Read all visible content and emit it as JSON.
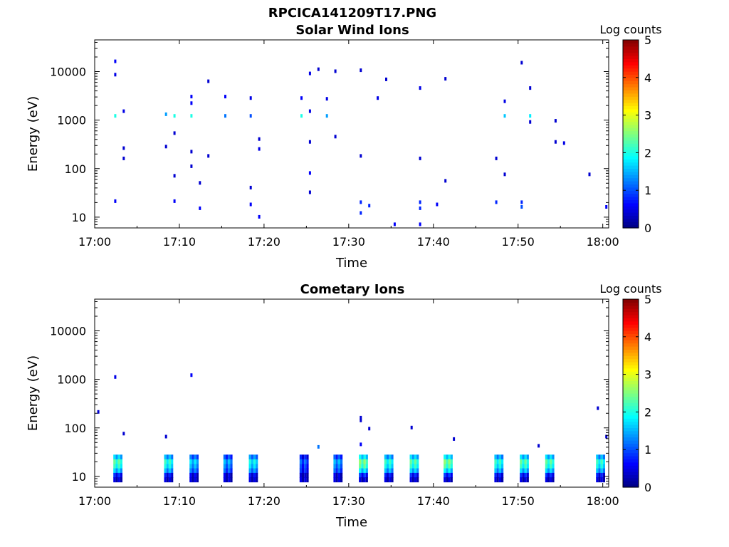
{
  "figure_title": "RPCICA141209T17.PNG",
  "chart_data": [
    {
      "type": "heatmap",
      "title": "Solar Wind Ions",
      "xlabel": "Time",
      "ylabel": "Energy (eV)",
      "y_scale": "log",
      "xlim": [
        "17:00",
        "18:00"
      ],
      "ylim": [
        6,
        45000
      ],
      "x_ticks": [
        "17:00",
        "17:10",
        "17:20",
        "17:30",
        "17:40",
        "17:50",
        "18:00"
      ],
      "y_ticks": [
        "10",
        "100",
        "1000",
        "10000"
      ],
      "colorbar": {
        "label": "Log counts",
        "range": [
          0,
          5
        ],
        "ticks": [
          "0",
          "1",
          "2",
          "3",
          "4",
          "5"
        ]
      },
      "cells": [
        {
          "t": "17:02",
          "e": 1200,
          "v": 2.0
        },
        {
          "t": "17:02",
          "e": 16000,
          "v": 0.6
        },
        {
          "t": "17:02",
          "e": 8500,
          "v": 0.5
        },
        {
          "t": "17:02",
          "e": 21,
          "v": 0.6
        },
        {
          "t": "17:03",
          "e": 1500,
          "v": 0.5
        },
        {
          "t": "17:03",
          "e": 160,
          "v": 0.4
        },
        {
          "t": "17:03",
          "e": 260,
          "v": 0.4
        },
        {
          "t": "17:08",
          "e": 1300,
          "v": 1.4
        },
        {
          "t": "17:09",
          "e": 1200,
          "v": 2.0
        },
        {
          "t": "17:09",
          "e": 530,
          "v": 0.4
        },
        {
          "t": "17:08",
          "e": 280,
          "v": 0.4
        },
        {
          "t": "17:09",
          "e": 70,
          "v": 0.4
        },
        {
          "t": "17:09",
          "e": 21,
          "v": 0.6
        },
        {
          "t": "17:11",
          "e": 1200,
          "v": 2.0
        },
        {
          "t": "17:11",
          "e": 3000,
          "v": 0.6
        },
        {
          "t": "17:11",
          "e": 2200,
          "v": 0.6
        },
        {
          "t": "17:11",
          "e": 220,
          "v": 0.4
        },
        {
          "t": "17:11",
          "e": 110,
          "v": 0.4
        },
        {
          "t": "17:12",
          "e": 50,
          "v": 0.4
        },
        {
          "t": "17:12",
          "e": 15,
          "v": 0.6
        },
        {
          "t": "17:13",
          "e": 6200,
          "v": 0.4
        },
        {
          "t": "17:13",
          "e": 180,
          "v": 0.4
        },
        {
          "t": "17:15",
          "e": 3000,
          "v": 0.6
        },
        {
          "t": "17:15",
          "e": 1200,
          "v": 1.2
        },
        {
          "t": "17:18",
          "e": 2800,
          "v": 0.5
        },
        {
          "t": "17:18",
          "e": 1200,
          "v": 1.0
        },
        {
          "t": "17:18",
          "e": 40,
          "v": 0.4
        },
        {
          "t": "17:18",
          "e": 18,
          "v": 0.6
        },
        {
          "t": "17:19",
          "e": 400,
          "v": 0.4
        },
        {
          "t": "17:19",
          "e": 250,
          "v": 0.5
        },
        {
          "t": "17:19",
          "e": 10,
          "v": 0.6
        },
        {
          "t": "17:24",
          "e": 1200,
          "v": 2.0
        },
        {
          "t": "17:24",
          "e": 2800,
          "v": 0.6
        },
        {
          "t": "17:25",
          "e": 9000,
          "v": 0.5
        },
        {
          "t": "17:25",
          "e": 1500,
          "v": 0.5
        },
        {
          "t": "17:25",
          "e": 350,
          "v": 0.4
        },
        {
          "t": "17:25",
          "e": 80,
          "v": 0.6
        },
        {
          "t": "17:25",
          "e": 32,
          "v": 0.4
        },
        {
          "t": "17:26",
          "e": 11000,
          "v": 0.4
        },
        {
          "t": "17:27",
          "e": 1200,
          "v": 1.4
        },
        {
          "t": "17:27",
          "e": 2700,
          "v": 0.5
        },
        {
          "t": "17:28",
          "e": 10000,
          "v": 0.4
        },
        {
          "t": "17:28",
          "e": 450,
          "v": 0.4
        },
        {
          "t": "17:31",
          "e": 20,
          "v": 0.8
        },
        {
          "t": "17:31",
          "e": 12,
          "v": 0.8
        },
        {
          "t": "17:32",
          "e": 17,
          "v": 0.8
        },
        {
          "t": "17:31",
          "e": 10500,
          "v": 0.4
        },
        {
          "t": "17:31",
          "e": 180,
          "v": 0.4
        },
        {
          "t": "17:33",
          "e": 2800,
          "v": 0.5
        },
        {
          "t": "17:34",
          "e": 6800,
          "v": 0.4
        },
        {
          "t": "17:35",
          "e": 7,
          "v": 0.6
        },
        {
          "t": "17:38",
          "e": 20,
          "v": 0.8
        },
        {
          "t": "17:38",
          "e": 15,
          "v": 0.8
        },
        {
          "t": "17:38",
          "e": 4500,
          "v": 0.5
        },
        {
          "t": "17:38",
          "e": 160,
          "v": 0.4
        },
        {
          "t": "17:38",
          "e": 7,
          "v": 0.6
        },
        {
          "t": "17:40",
          "e": 18,
          "v": 0.6
        },
        {
          "t": "17:41",
          "e": 7000,
          "v": 0.4
        },
        {
          "t": "17:41",
          "e": 55,
          "v": 0.4
        },
        {
          "t": "17:47",
          "e": 20,
          "v": 0.8
        },
        {
          "t": "17:47",
          "e": 160,
          "v": 0.4
        },
        {
          "t": "17:48",
          "e": 1200,
          "v": 1.6
        },
        {
          "t": "17:48",
          "e": 2400,
          "v": 0.5
        },
        {
          "t": "17:48",
          "e": 75,
          "v": 0.4
        },
        {
          "t": "17:50",
          "e": 15000,
          "v": 0.4
        },
        {
          "t": "17:50",
          "e": 20,
          "v": 0.8
        },
        {
          "t": "17:50",
          "e": 16,
          "v": 1.0
        },
        {
          "t": "17:51",
          "e": 1200,
          "v": 1.8
        },
        {
          "t": "17:51",
          "e": 4500,
          "v": 0.4
        },
        {
          "t": "17:51",
          "e": 900,
          "v": 0.4
        },
        {
          "t": "17:54",
          "e": 950,
          "v": 0.4
        },
        {
          "t": "17:54",
          "e": 350,
          "v": 0.4
        },
        {
          "t": "17:55",
          "e": 330,
          "v": 0.5
        },
        {
          "t": "17:58",
          "e": 75,
          "v": 0.4
        },
        {
          "t": "18:00",
          "e": 16,
          "v": 0.6
        }
      ]
    },
    {
      "type": "heatmap",
      "title": "Cometary Ions",
      "xlabel": "Time",
      "ylabel": "Energy (eV)",
      "y_scale": "log",
      "xlim": [
        "17:00",
        "18:00"
      ],
      "ylim": [
        6,
        45000
      ],
      "x_ticks": [
        "17:00",
        "17:10",
        "17:20",
        "17:30",
        "17:40",
        "17:50",
        "18:00"
      ],
      "y_ticks": [
        "10",
        "100",
        "1000",
        "10000"
      ],
      "colorbar": {
        "label": "Log counts",
        "range": [
          0,
          5
        ],
        "ticks": [
          "0",
          "1",
          "2",
          "3",
          "4",
          "5"
        ]
      },
      "bursts": [
        {
          "t": "17:02",
          "v": 2.2
        },
        {
          "t": "17:08",
          "v": 2.0
        },
        {
          "t": "17:11",
          "v": 1.6
        },
        {
          "t": "17:15",
          "v": 1.4
        },
        {
          "t": "17:18",
          "v": 1.8
        },
        {
          "t": "17:24",
          "v": 1.0
        },
        {
          "t": "17:28",
          "v": 1.4
        },
        {
          "t": "17:31",
          "v": 2.4
        },
        {
          "t": "17:34",
          "v": 2.0
        },
        {
          "t": "17:37",
          "v": 2.2
        },
        {
          "t": "17:41",
          "v": 2.4
        },
        {
          "t": "17:47",
          "v": 2.0
        },
        {
          "t": "17:50",
          "v": 2.2
        },
        {
          "t": "17:53",
          "v": 2.2
        },
        {
          "t": "17:59",
          "v": 2.0
        }
      ],
      "cells": [
        {
          "t": "17:02",
          "e": 1100,
          "v": 0.5
        },
        {
          "t": "17:00",
          "e": 210,
          "v": 0.4
        },
        {
          "t": "17:03",
          "e": 75,
          "v": 0.4
        },
        {
          "t": "17:08",
          "e": 65,
          "v": 0.4
        },
        {
          "t": "17:11",
          "e": 1200,
          "v": 0.6
        },
        {
          "t": "17:26",
          "e": 40,
          "v": 1.2
        },
        {
          "t": "17:31",
          "e": 160,
          "v": 0.4
        },
        {
          "t": "17:31",
          "e": 140,
          "v": 0.4
        },
        {
          "t": "17:32",
          "e": 95,
          "v": 0.4
        },
        {
          "t": "17:31",
          "e": 45,
          "v": 0.6
        },
        {
          "t": "17:37",
          "e": 100,
          "v": 0.4
        },
        {
          "t": "17:42",
          "e": 58,
          "v": 0.4
        },
        {
          "t": "17:52",
          "e": 42,
          "v": 0.4
        },
        {
          "t": "17:59",
          "e": 250,
          "v": 0.4
        },
        {
          "t": "18:00",
          "e": 65,
          "v": 0.4
        }
      ]
    }
  ]
}
